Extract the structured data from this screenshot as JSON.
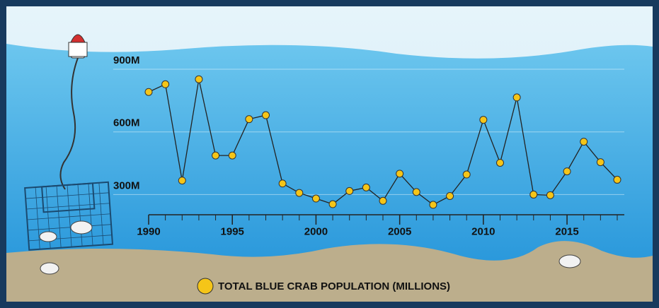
{
  "chart_data": {
    "type": "line",
    "x": [
      1990,
      1991,
      1992,
      1993,
      1994,
      1995,
      1996,
      1997,
      1998,
      1999,
      2000,
      2001,
      2002,
      2003,
      2004,
      2005,
      2006,
      2007,
      2008,
      2009,
      2010,
      2011,
      2012,
      2013,
      2014,
      2015,
      2016,
      2017,
      2018
    ],
    "series": [
      {
        "name": "TOTAL BLUE CRAB POPULATION (MILLIONS)",
        "color": "#f5c518",
        "values": [
          791,
          828,
          367,
          852,
          487,
          487,
          661,
          680,
          353,
          308,
          281,
          254,
          317,
          334,
          270,
          400,
          312,
          251,
          293,
          396,
          658,
          452,
          765,
          300,
          297,
          411,
          553,
          455,
          371
        ]
      }
    ],
    "xlim": [
      1990,
      2018
    ],
    "xticks": [
      1990,
      1995,
      2000,
      2005,
      2010,
      2015
    ],
    "ylim": [
      200,
      900
    ],
    "yticks": [
      {
        "value": 300,
        "label": "300M"
      },
      {
        "value": 600,
        "label": "600M"
      },
      {
        "value": 900,
        "label": "900M"
      }
    ],
    "grid": true
  }
}
